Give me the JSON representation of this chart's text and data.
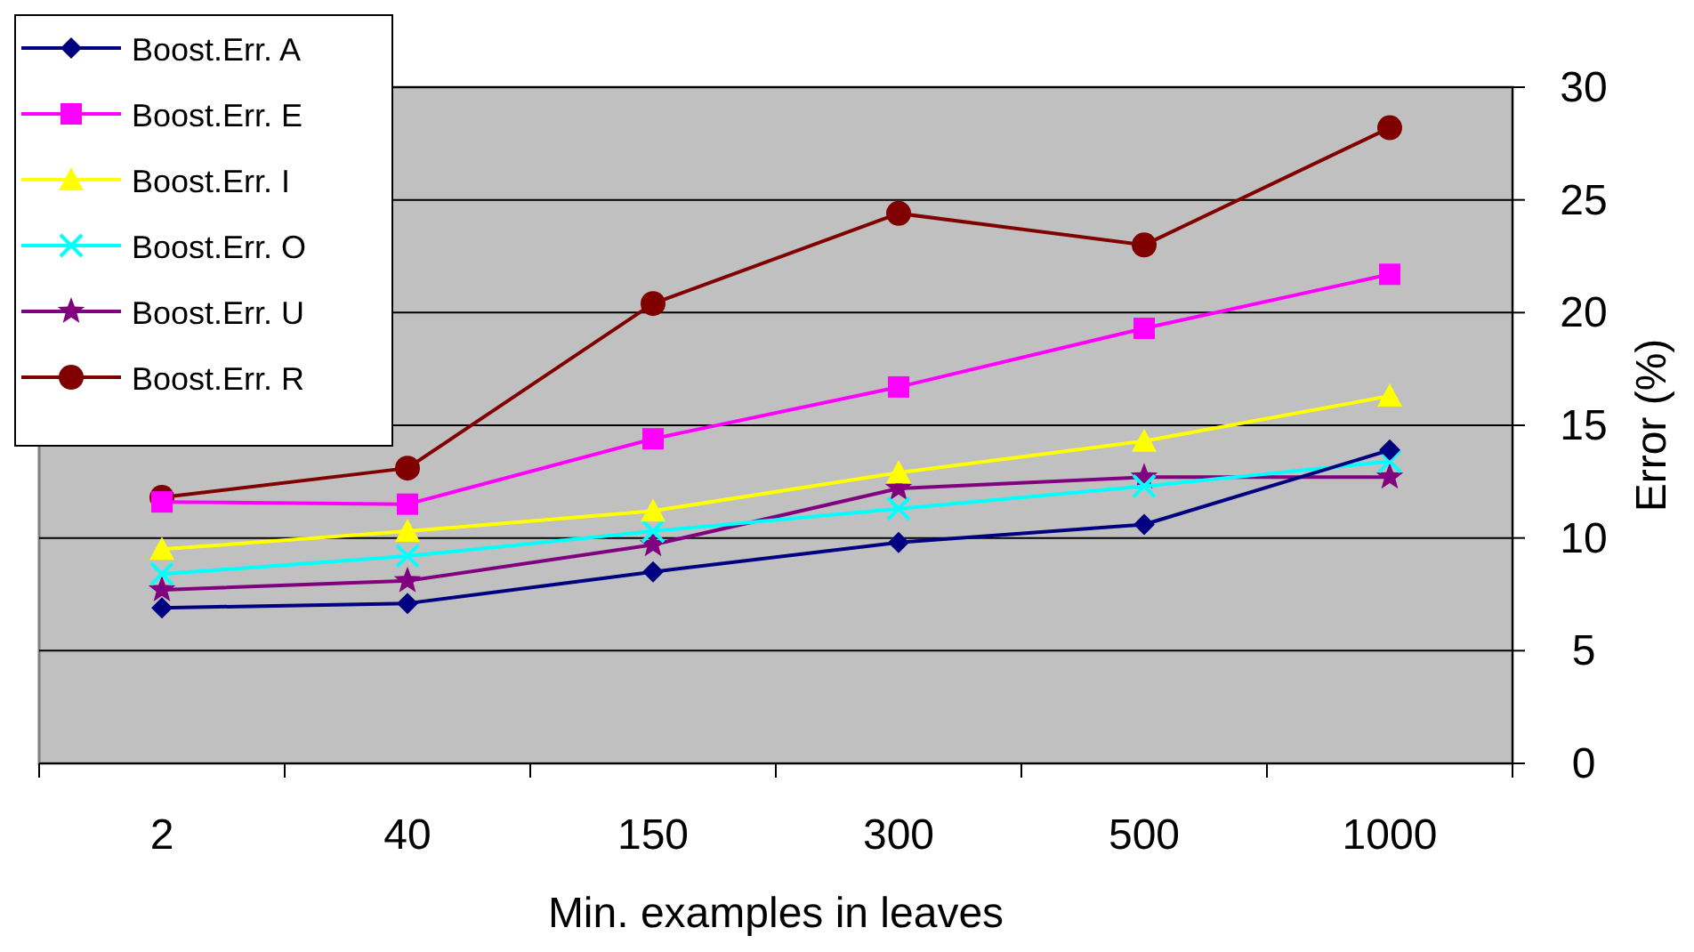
{
  "chart_data": {
    "type": "line",
    "xlabel": "Min. examples in leaves",
    "ylabel": "Error (%)",
    "categories": [
      "2",
      "40",
      "150",
      "300",
      "500",
      "1000"
    ],
    "ylim": [
      0,
      30
    ],
    "yticks": [
      0,
      5,
      10,
      15,
      20,
      25,
      30
    ],
    "grid": "y",
    "legend": "top left",
    "series": [
      {
        "name": "Boost.Err. A",
        "color": "#000080",
        "marker": "diamond",
        "values": [
          6.9,
          7.1,
          8.5,
          9.8,
          10.6,
          13.9
        ]
      },
      {
        "name": "Boost.Err. E",
        "color": "#ff00ff",
        "marker": "square",
        "values": [
          11.6,
          11.5,
          14.4,
          16.7,
          19.3,
          21.7
        ]
      },
      {
        "name": "Boost.Err. I",
        "color": "#ffff00",
        "marker": "triangle",
        "values": [
          9.5,
          10.3,
          11.2,
          12.9,
          14.3,
          16.3
        ]
      },
      {
        "name": "Boost.Err. O",
        "color": "#00ffff",
        "marker": "cross",
        "values": [
          8.4,
          9.2,
          10.3,
          11.3,
          12.3,
          13.4
        ]
      },
      {
        "name": "Boost.Err. U",
        "color": "#800080",
        "marker": "star",
        "values": [
          7.7,
          8.1,
          9.7,
          12.2,
          12.7,
          12.7
        ]
      },
      {
        "name": "Boost.Err. R",
        "color": "#800000",
        "marker": "circle",
        "values": [
          11.8,
          13.1,
          20.4,
          24.4,
          23.0,
          28.2
        ]
      }
    ]
  }
}
